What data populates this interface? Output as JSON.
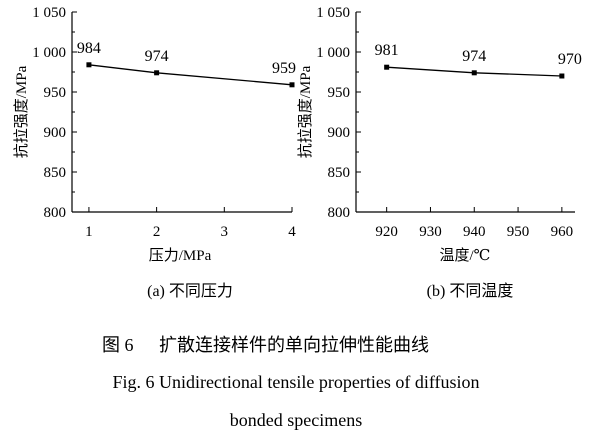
{
  "chart_data": [
    {
      "type": "line",
      "panel_label": "(a) 不同压力",
      "xlabel": "压力/MPa",
      "ylabel": "抗拉强度/MPa",
      "x": [
        1,
        2,
        4
      ],
      "y": [
        984,
        974,
        959
      ],
      "data_labels": [
        "984",
        "974",
        "959"
      ],
      "xticks": [
        1,
        2,
        3,
        4
      ],
      "xtick_labels": [
        "1",
        "2",
        "3",
        "4"
      ],
      "xlim": [
        0.75,
        4
      ],
      "yticks": [
        800,
        850,
        900,
        950,
        1000,
        1050
      ],
      "ytick_labels": [
        "800",
        "850",
        "900",
        "950",
        "1 000",
        "1 050"
      ],
      "ylim": [
        800,
        1050
      ],
      "grid": false,
      "marker": "square",
      "color": "#000000"
    },
    {
      "type": "line",
      "panel_label": "(b) 不同温度",
      "xlabel": "温度/℃",
      "ylabel": "抗拉强度/MPa",
      "x": [
        920,
        940,
        960
      ],
      "y": [
        981,
        974,
        970
      ],
      "data_labels": [
        "981",
        "974",
        "970"
      ],
      "xticks": [
        920,
        930,
        940,
        950,
        960
      ],
      "xtick_labels": [
        "920",
        "930",
        "940",
        "950",
        "960"
      ],
      "xlim": [
        913,
        963
      ],
      "yticks": [
        800,
        850,
        900,
        950,
        1000,
        1050
      ],
      "ytick_labels": [
        "800",
        "850",
        "900",
        "950",
        "1 000",
        "1 050"
      ],
      "ylim": [
        800,
        1050
      ],
      "grid": false,
      "marker": "square",
      "color": "#000000"
    }
  ],
  "caption": {
    "cn_number": "图 6",
    "cn_text": "扩散连接样件的单向拉伸性能曲线",
    "en_line1": "Fig. 6 Unidirectional tensile properties of diffusion",
    "en_line2": "bonded specimens"
  }
}
